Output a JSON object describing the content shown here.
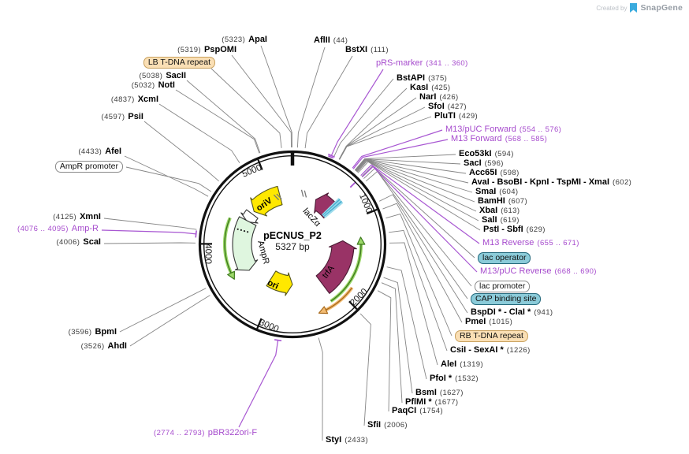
{
  "watermark": {
    "created_by": "Created by",
    "brand": "SnapGene"
  },
  "plasmid": {
    "name": "pECNUS_P2",
    "size": "5327 bp"
  },
  "separator": "-",
  "tick_labels": [
    "1000",
    "2000",
    "3000",
    "4000",
    "5000"
  ],
  "features": {
    "oriv": {
      "label": "oriV"
    },
    "ampr": {
      "label": "AmpR"
    },
    "ori": {
      "label": "ori"
    },
    "lacz": {
      "label": "lacZα"
    },
    "trfa": {
      "label": "trfA"
    }
  },
  "colors": {
    "primer_purple": "#A64BCD",
    "feature_maroon": "#993366",
    "feature_yellow": "#FFE800",
    "feature_mint": "#DFF6DF",
    "arrow_green": "#9CD869",
    "arrow_orange": "#F2BB72",
    "badge_tan": "#FADFB5",
    "badge_teal": "#8BCBD9",
    "ring_black": "#1A1A1A"
  },
  "labels": {
    "apai": {
      "type": "enzyme",
      "posFirst": true,
      "names": [
        "ApaI"
      ],
      "pos": "(5323)"
    },
    "pspomi": {
      "type": "enzyme",
      "posFirst": true,
      "names": [
        "PspOMI"
      ],
      "pos": "(5319)"
    },
    "lb": {
      "type": "badge_tan",
      "names": [
        "LB T-DNA repeat"
      ]
    },
    "sacii": {
      "type": "enzyme",
      "posFirst": true,
      "names": [
        "SacII"
      ],
      "pos": "(5038)"
    },
    "noti": {
      "type": "enzyme",
      "posFirst": true,
      "names": [
        "NotI"
      ],
      "pos": "(5032)"
    },
    "xcmi": {
      "type": "enzyme",
      "posFirst": true,
      "names": [
        "XcmI"
      ],
      "pos": "(4837)"
    },
    "psii": {
      "type": "enzyme",
      "posFirst": true,
      "names": [
        "PsiI"
      ],
      "pos": "(4597)"
    },
    "afei": {
      "type": "enzyme",
      "posFirst": true,
      "names": [
        "AfeI"
      ],
      "pos": "(4433)"
    },
    "amprprom": {
      "type": "badge_white",
      "names": [
        "AmpR promoter"
      ]
    },
    "xmni": {
      "type": "enzyme",
      "posFirst": true,
      "names": [
        "XmnI"
      ],
      "pos": "(4125)"
    },
    "ampr_r": {
      "type": "primer",
      "posFirst": true,
      "names": [
        "Amp-R"
      ],
      "pos": "(4076 .. 4095)"
    },
    "scai": {
      "type": "enzyme",
      "posFirst": true,
      "names": [
        "ScaI"
      ],
      "pos": "(4006)"
    },
    "bpmi": {
      "type": "enzyme",
      "posFirst": true,
      "names": [
        "BpmI"
      ],
      "pos": "(3596)"
    },
    "ahdi": {
      "type": "enzyme",
      "posFirst": true,
      "names": [
        "AhdI"
      ],
      "pos": "(3526)"
    },
    "pbr322": {
      "type": "primer",
      "posFirst": true,
      "names": [
        "pBR322ori-F"
      ],
      "pos": "(2774 .. 2793)"
    },
    "aflii": {
      "type": "enzyme",
      "posFirst": false,
      "names": [
        "AflII"
      ],
      "pos": "(44)"
    },
    "bstxi": {
      "type": "enzyme",
      "posFirst": false,
      "names": [
        "BstXI"
      ],
      "pos": "(111)"
    },
    "prs": {
      "type": "primer",
      "posFirst": false,
      "names": [
        "pRS-marker"
      ],
      "pos": "(341 .. 360)"
    },
    "bstapi": {
      "type": "enzyme",
      "posFirst": false,
      "names": [
        "BstAPI"
      ],
      "pos": "(375)"
    },
    "kasi": {
      "type": "enzyme",
      "posFirst": false,
      "names": [
        "KasI"
      ],
      "pos": "(425)"
    },
    "nari": {
      "type": "enzyme",
      "posFirst": false,
      "names": [
        "NarI"
      ],
      "pos": "(426)"
    },
    "sfoi": {
      "type": "enzyme",
      "posFirst": false,
      "names": [
        "SfoI"
      ],
      "pos": "(427)"
    },
    "pluti": {
      "type": "enzyme",
      "posFirst": false,
      "names": [
        "PluTI"
      ],
      "pos": "(429)"
    },
    "m13pucf": {
      "type": "primer",
      "posFirst": false,
      "names": [
        "M13/pUC Forward"
      ],
      "pos": "(554 .. 576)"
    },
    "m13f": {
      "type": "primer",
      "posFirst": false,
      "names": [
        "M13 Forward"
      ],
      "pos": "(568 .. 585)"
    },
    "eco53ki": {
      "type": "enzyme",
      "posFirst": false,
      "names": [
        "Eco53kI"
      ],
      "pos": "(594)"
    },
    "saci": {
      "type": "enzyme",
      "posFirst": false,
      "names": [
        "SacI"
      ],
      "pos": "(596)"
    },
    "acc65i": {
      "type": "enzyme",
      "posFirst": false,
      "names": [
        "Acc65I"
      ],
      "pos": "(598)"
    },
    "avai": {
      "type": "enzyme",
      "posFirst": false,
      "names": [
        "AvaI",
        "BsoBI",
        "KpnI",
        "TspMI",
        "XmaI"
      ],
      "pos": "(602)"
    },
    "smai": {
      "type": "enzyme",
      "posFirst": false,
      "names": [
        "SmaI"
      ],
      "pos": "(604)"
    },
    "bamhi": {
      "type": "enzyme",
      "posFirst": false,
      "names": [
        "BamHI"
      ],
      "pos": "(607)"
    },
    "xbai": {
      "type": "enzyme",
      "posFirst": false,
      "names": [
        "XbaI"
      ],
      "pos": "(613)"
    },
    "sali": {
      "type": "enzyme",
      "posFirst": false,
      "names": [
        "SalI"
      ],
      "pos": "(619)"
    },
    "psti": {
      "type": "enzyme",
      "posFirst": false,
      "names": [
        "PstI",
        "SbfI"
      ],
      "pos": "(629)"
    },
    "m13rev": {
      "type": "primer",
      "posFirst": false,
      "names": [
        "M13 Reverse"
      ],
      "pos": "(655 .. 671)"
    },
    "lacop": {
      "type": "badge_teal",
      "names": [
        "lac operator"
      ]
    },
    "m13pucr": {
      "type": "primer",
      "posFirst": false,
      "names": [
        "M13/pUC Reverse"
      ],
      "pos": "(668 .. 690)"
    },
    "lacprom": {
      "type": "badge_white",
      "names": [
        "lac promoter"
      ]
    },
    "cap": {
      "type": "badge_teal",
      "names": [
        "CAP binding site"
      ]
    },
    "bspdi": {
      "type": "enzyme",
      "posFirst": false,
      "names": [
        "BspDI *",
        "ClaI *"
      ],
      "pos": "(941)"
    },
    "pmei": {
      "type": "enzyme",
      "posFirst": false,
      "names": [
        "PmeI"
      ],
      "pos": "(1015)"
    },
    "rb": {
      "type": "badge_tan",
      "names": [
        "RB T-DNA repeat"
      ]
    },
    "csii": {
      "type": "enzyme",
      "posFirst": false,
      "names": [
        "CsiI",
        "SexAI *"
      ],
      "pos": "(1226)"
    },
    "alei": {
      "type": "enzyme",
      "posFirst": false,
      "names": [
        "AleI"
      ],
      "pos": "(1319)"
    },
    "pfoi": {
      "type": "enzyme",
      "posFirst": false,
      "names": [
        "PfoI *"
      ],
      "pos": "(1532)"
    },
    "bsmi": {
      "type": "enzyme",
      "posFirst": false,
      "names": [
        "BsmI"
      ],
      "pos": "(1627)"
    },
    "pflmi": {
      "type": "enzyme",
      "posFirst": false,
      "names": [
        "PflMI *"
      ],
      "pos": "(1677)"
    },
    "paqci": {
      "type": "enzyme",
      "posFirst": false,
      "names": [
        "PaqCI"
      ],
      "pos": "(1754)"
    },
    "sfii": {
      "type": "enzyme",
      "posFirst": false,
      "names": [
        "SfiI"
      ],
      "pos": "(2006)"
    },
    "styi": {
      "type": "enzyme",
      "posFirst": false,
      "names": [
        "StyI"
      ],
      "pos": "(2433)"
    }
  }
}
